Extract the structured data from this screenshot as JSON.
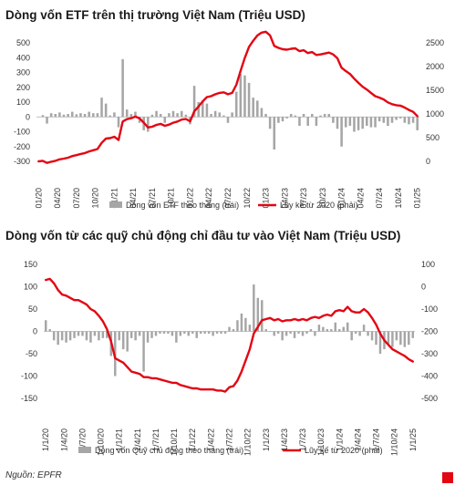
{
  "source": "Nguồn: EPFR",
  "brand_color": "#e30613",
  "bar_color": "#a6a6a6",
  "chart_data": [
    {
      "type": "bar+line",
      "title": "Dòng vốn ETF trên thị trường Việt Nam (Triệu USD)",
      "left_axis": {
        "ticks": [
          -300,
          -200,
          -100,
          0,
          100,
          200,
          300,
          400,
          500
        ],
        "ylim": [
          -300,
          500
        ]
      },
      "right_axis": {
        "ticks": [
          0,
          500,
          1000,
          1500,
          2000,
          2500
        ],
        "ylim": [
          0,
          2500
        ]
      },
      "x_ticks": [
        "01/20",
        "04/20",
        "07/20",
        "10/20",
        "01/21",
        "04/21",
        "07/21",
        "10/21",
        "01/22",
        "04/22",
        "07/22",
        "10/22",
        "01/23",
        "04/23",
        "07/23",
        "10/23",
        "01/24",
        "04/24",
        "07/24",
        "10/24",
        "01/25"
      ],
      "series": [
        {
          "name": "Dòng vốn ETF theo tháng (trái)",
          "kind": "bar",
          "values": [
            2,
            12,
            -45,
            25,
            20,
            30,
            15,
            20,
            35,
            18,
            25,
            20,
            35,
            25,
            25,
            130,
            90,
            10,
            30,
            -70,
            390,
            50,
            20,
            35,
            -40,
            -90,
            -100,
            15,
            40,
            20,
            -40,
            25,
            40,
            25,
            40,
            15,
            -50,
            210,
            100,
            110,
            90,
            20,
            40,
            30,
            10,
            -40,
            30,
            170,
            290,
            280,
            230,
            130,
            110,
            60,
            20,
            -80,
            -220,
            -40,
            -30,
            -10,
            20,
            10,
            -60,
            20,
            -60,
            20,
            -60,
            10,
            20,
            20,
            -40,
            -80,
            -200,
            -70,
            -60,
            -100,
            -90,
            -80,
            -60,
            -70,
            -70,
            -30,
            -40,
            -60,
            -40,
            -20,
            -10,
            -40,
            -50,
            -40,
            -90
          ]
        },
        {
          "name": "Lũy kế từ 2020 (phải)",
          "kind": "line",
          "values": [
            0,
            12,
            -33,
            -8,
            12,
            42,
            57,
            77,
            112,
            130,
            155,
            175,
            210,
            235,
            260,
            390,
            480,
            490,
            520,
            450,
            840,
            890,
            910,
            945,
            905,
            815,
            715,
            730,
            770,
            790,
            750,
            775,
            815,
            840,
            880,
            895,
            845,
            1055,
            1155,
            1265,
            1355,
            1375,
            1415,
            1445,
            1455,
            1415,
            1445,
            1615,
            1905,
            2185,
            2415,
            2545,
            2655,
            2715,
            2735,
            2655,
            2435,
            2395,
            2365,
            2355,
            2375,
            2385,
            2325,
            2345,
            2285,
            2305,
            2245,
            2255,
            2275,
            2295,
            2255,
            2175,
            1975,
            1905,
            1845,
            1745,
            1655,
            1575,
            1515,
            1445,
            1375,
            1345,
            1305,
            1245,
            1205,
            1185,
            1175,
            1135,
            1085,
            1045,
            955
          ]
        }
      ]
    },
    {
      "type": "bar+line",
      "title": "Dòng vốn từ các quỹ chủ động chỉ đầu tư vào Việt Nam (Triệu USD)",
      "left_axis": {
        "ticks": [
          -150,
          -100,
          -50,
          0,
          50,
          100,
          150
        ],
        "ylim": [
          -150,
          150
        ]
      },
      "right_axis": {
        "ticks": [
          -500,
          -400,
          -300,
          -200,
          -100,
          0,
          100
        ],
        "ylim": [
          -500,
          100
        ]
      },
      "x_ticks": [
        "1/1/20",
        "1/4/20",
        "1/7/20",
        "1/10/20",
        "1/1/21",
        "1/4/21",
        "1/7/21",
        "1/10/21",
        "1/1/22",
        "1/4/22",
        "1/7/22",
        "1/10/22",
        "1/1/23",
        "1/4/23",
        "1/7/23",
        "1/10/23",
        "1/1/24",
        "1/4/24",
        "1/7/24",
        "1/10/24",
        "1/1/25"
      ],
      "series": [
        {
          "name": "Dòng vốn Quỹ chủ động theo tháng (trái)",
          "kind": "bar",
          "values": [
            25,
            5,
            -20,
            -30,
            -20,
            -25,
            -20,
            -15,
            -10,
            -10,
            -20,
            -25,
            -10,
            -20,
            -15,
            -15,
            -55,
            -100,
            -20,
            -40,
            -45,
            -15,
            -20,
            -10,
            -90,
            -25,
            -15,
            -10,
            -5,
            -5,
            -5,
            -10,
            -25,
            -10,
            -5,
            -10,
            -5,
            -15,
            -5,
            -5,
            -5,
            -10,
            -5,
            -5,
            -5,
            10,
            5,
            25,
            40,
            30,
            15,
            105,
            75,
            70,
            5,
            0,
            -10,
            -5,
            -20,
            -10,
            -5,
            -15,
            -5,
            -10,
            -5,
            5,
            -10,
            15,
            10,
            5,
            5,
            20,
            5,
            10,
            20,
            -20,
            -5,
            -10,
            15,
            -10,
            -20,
            -30,
            -50,
            -40,
            -30,
            -35,
            -20,
            -30,
            -35,
            -30,
            -15
          ]
        },
        {
          "name": "Lũy kế từ 2020 (phải)",
          "kind": "line",
          "values": [
            30,
            35,
            15,
            -15,
            -35,
            -40,
            -50,
            -60,
            -60,
            -70,
            -80,
            -100,
            -110,
            -130,
            -155,
            -190,
            -245,
            -320,
            -330,
            -340,
            -360,
            -380,
            -385,
            -390,
            -405,
            -405,
            -410,
            -410,
            -415,
            -420,
            -425,
            -430,
            -430,
            -440,
            -445,
            -450,
            -455,
            -455,
            -460,
            -460,
            -460,
            -460,
            -465,
            -465,
            -470,
            -450,
            -445,
            -420,
            -380,
            -330,
            -280,
            -210,
            -180,
            -150,
            -145,
            -140,
            -150,
            -145,
            -155,
            -150,
            -150,
            -145,
            -150,
            -145,
            -150,
            -140,
            -135,
            -140,
            -130,
            -125,
            -130,
            -110,
            -105,
            -110,
            -90,
            -110,
            -115,
            -115,
            -100,
            -115,
            -140,
            -170,
            -210,
            -240,
            -260,
            -280,
            -290,
            -300,
            -310,
            -325,
            -335
          ]
        }
      ]
    }
  ]
}
